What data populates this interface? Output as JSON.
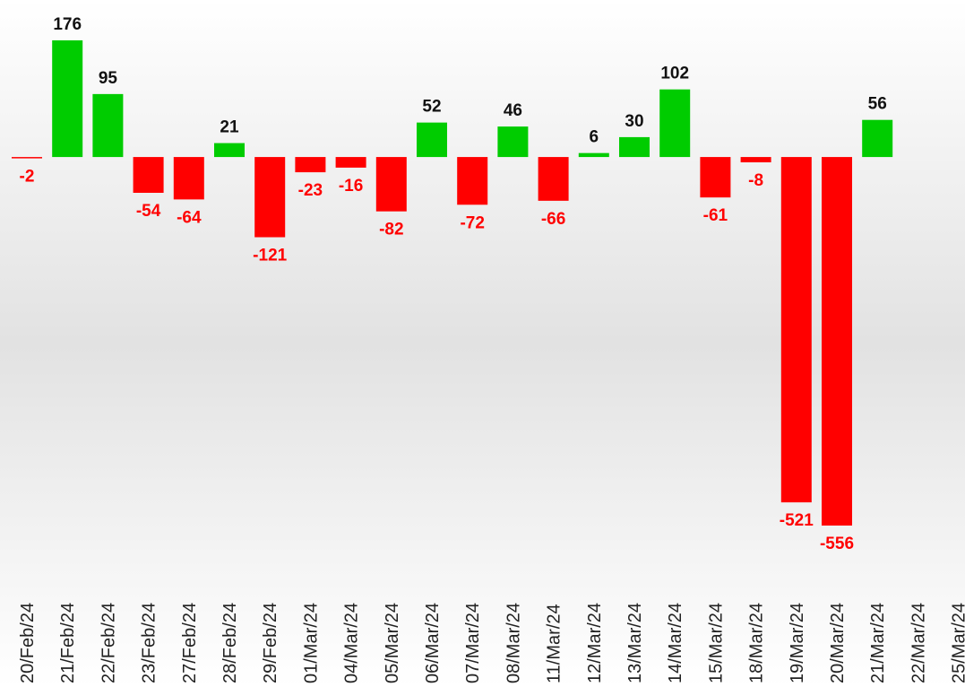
{
  "chart_data": {
    "type": "bar",
    "categories": [
      "20/Feb/24",
      "21/Feb/24",
      "22/Feb/24",
      "23/Feb/24",
      "27/Feb/24",
      "28/Feb/24",
      "29/Feb/24",
      "01/Mar/24",
      "04/Mar/24",
      "05/Mar/24",
      "06/Mar/24",
      "07/Mar/24",
      "08/Mar/24",
      "11/Mar/24",
      "12/Mar/24",
      "13/Mar/24",
      "14/Mar/24",
      "15/Mar/24",
      "18/Mar/24",
      "19/Mar/24",
      "20/Mar/24",
      "21/Mar/24",
      "22/Mar/24",
      "25/Mar/24"
    ],
    "values": [
      -2,
      176,
      95,
      -54,
      -64,
      21,
      -121,
      -23,
      -16,
      -82,
      52,
      -72,
      46,
      -66,
      6,
      30,
      102,
      -61,
      -8,
      -521,
      -556,
      56,
      null,
      null
    ],
    "positive_color": "#00cc00",
    "negative_color": "#ff0000"
  }
}
